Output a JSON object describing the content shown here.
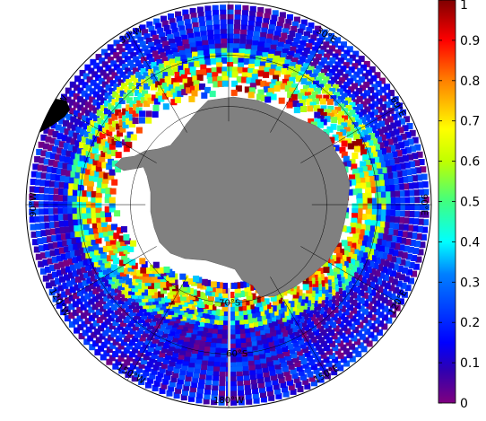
{
  "map": {
    "projection": "south-polar-stereographic",
    "coverage": "sea-ice-zone-around-antarctica",
    "colormap": "jet",
    "land_color": "#808080",
    "no_data_color": "#ffffff",
    "longitude_labels": [
      {
        "text": "30°W",
        "lon": -30
      },
      {
        "text": "30°E",
        "lon": 30
      },
      {
        "text": "60°W",
        "lon": -60
      },
      {
        "text": "60°E",
        "lon": 60
      },
      {
        "text": "90°W",
        "lon": -90
      },
      {
        "text": "90°E",
        "lon": 90
      },
      {
        "text": "120°W",
        "lon": -120
      },
      {
        "text": "120°E",
        "lon": 120
      },
      {
        "text": "150°W",
        "lon": -150
      },
      {
        "text": "150°E",
        "lon": 150
      },
      {
        "text": "180°W",
        "lon": 180
      }
    ],
    "latitude_labels": [
      {
        "text": "70°S",
        "lat": -70
      },
      {
        "text": "60°S",
        "lat": -60
      }
    ],
    "meridians_deg": [
      0,
      30,
      60,
      90,
      120,
      150,
      180,
      -150,
      -120,
      -90,
      -60,
      -30
    ],
    "parallels_deg": [
      -60,
      -70
    ]
  },
  "colorbar": {
    "min": 0,
    "max": 1,
    "ticks": [
      "1",
      "0.9",
      "0.8",
      "0.7",
      "0.6",
      "0.5",
      "0.4",
      "0.3",
      "0.2",
      "0.1",
      "0"
    ]
  }
}
